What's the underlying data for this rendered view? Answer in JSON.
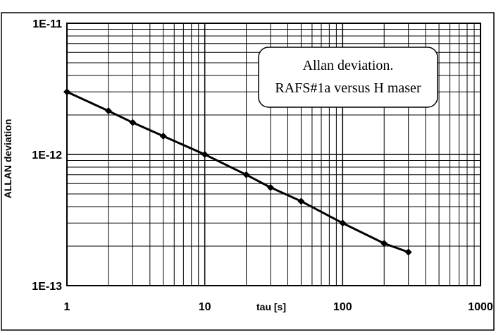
{
  "chart_data": {
    "type": "line",
    "title": "",
    "xlabel": "tau [s]",
    "ylabel": "ALLAN deviation",
    "x_scale": "log",
    "y_scale": "log",
    "xlim": [
      1,
      1000
    ],
    "ylim": [
      1e-13,
      1e-11
    ],
    "grid": true,
    "x_tick_labels": [
      "1",
      "10",
      "100",
      "1000"
    ],
    "y_tick_labels": [
      "1E-13",
      "1E-12",
      "1E-11"
    ],
    "legend_position": "top-right",
    "legend": {
      "line1": "Allan deviation.",
      "line2": "RAFS#1a versus H maser"
    },
    "series": [
      {
        "x": [
          1,
          2,
          3,
          5,
          10,
          20,
          30,
          50,
          100,
          200,
          300
        ],
        "y": [
          3e-12,
          2.15e-12,
          1.75e-12,
          1.38e-12,
          1e-12,
          7e-13,
          5.6e-13,
          4.4e-13,
          3e-13,
          2.1e-13,
          1.8e-13
        ],
        "color": "#000000",
        "marker": "diamond"
      }
    ]
  }
}
